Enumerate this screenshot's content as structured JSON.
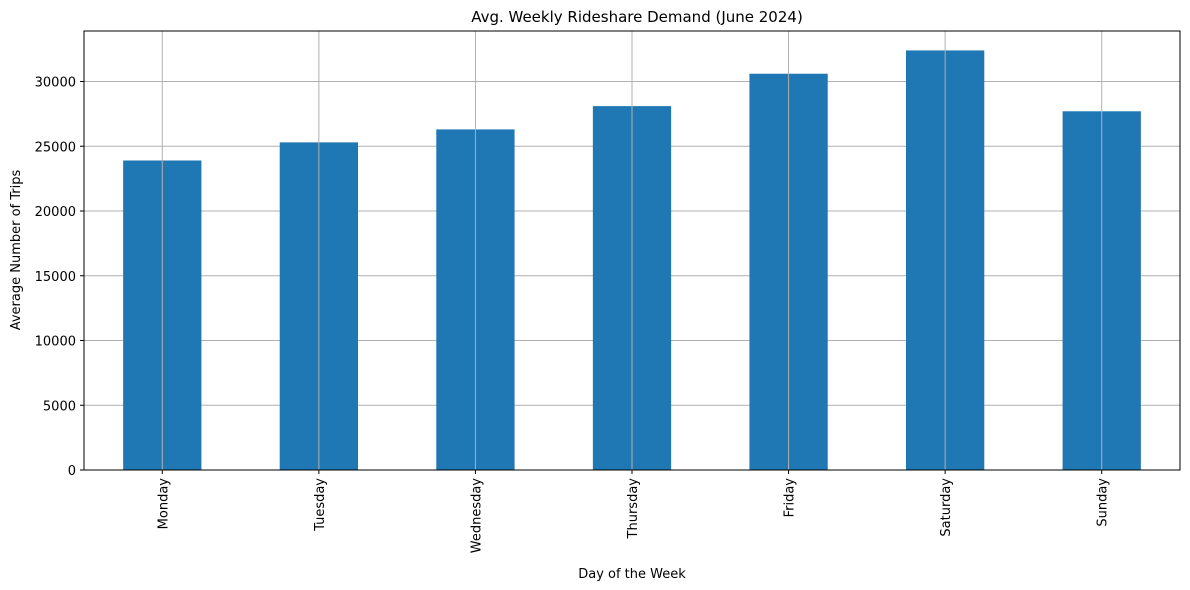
{
  "chart_data": {
    "type": "bar",
    "title": "Avg. Weekly Rideshare Demand (June 2024)",
    "xlabel": "Day of the Week",
    "ylabel": "Average Number of Trips",
    "categories": [
      "Monday",
      "Tuesday",
      "Wednesday",
      "Thursday",
      "Friday",
      "Saturday",
      "Sunday"
    ],
    "values": [
      23900,
      25300,
      26300,
      28100,
      30600,
      32400,
      27700
    ],
    "ylim": [
      0,
      33900
    ],
    "yticks": [
      0,
      5000,
      10000,
      15000,
      20000,
      25000,
      30000
    ],
    "grid": true,
    "bar_color": "#1f77b4",
    "grid_color": "#b0b0b0"
  }
}
